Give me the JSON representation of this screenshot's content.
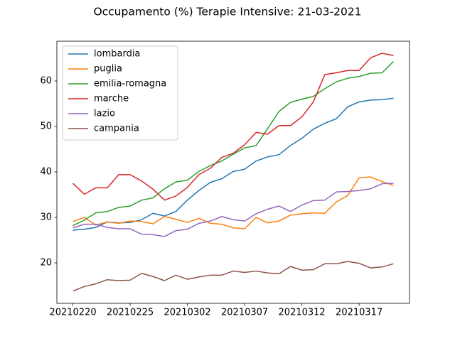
{
  "chart_data": {
    "type": "line",
    "title": "Occupamento (%) Terapie Intensive: 21-03-2021",
    "categories": [
      "20210220",
      null,
      null,
      null,
      null,
      "20210225",
      null,
      null,
      null,
      null,
      "20210302",
      null,
      null,
      null,
      null,
      "20210307",
      null,
      null,
      null,
      null,
      "20210312",
      null,
      null,
      null,
      null,
      "20210317",
      null,
      null,
      null
    ],
    "series": [
      {
        "name": "lombardia",
        "color": "#1f77b4",
        "values": [
          27.2,
          27.4,
          27.8,
          29.0,
          28.8,
          28.9,
          29.5,
          30.9,
          30.3,
          31.3,
          33.8,
          35.9,
          37.7,
          38.5,
          40.1,
          40.6,
          42.4,
          43.3,
          43.8,
          45.8,
          47.4,
          49.4,
          50.7,
          51.7,
          54.3,
          55.4,
          55.8,
          55.9,
          56.2
        ]
      },
      {
        "name": "puglia",
        "color": "#ff7f0e",
        "values": [
          29.1,
          30.0,
          28.3,
          29.0,
          28.7,
          29.2,
          29.1,
          28.6,
          30.2,
          29.6,
          28.9,
          29.8,
          28.7,
          28.5,
          27.7,
          27.5,
          30.0,
          28.8,
          29.2,
          30.5,
          30.8,
          31.0,
          30.9,
          33.4,
          34.8,
          38.7,
          38.9,
          37.9,
          37.0
        ]
      },
      {
        "name": "emilia-romagna",
        "color": "#2ca02c",
        "values": [
          28.2,
          29.4,
          31.0,
          31.3,
          32.2,
          32.5,
          33.8,
          34.3,
          36.3,
          37.8,
          38.2,
          40.1,
          41.4,
          42.4,
          43.9,
          45.3,
          45.8,
          49.5,
          53.3,
          55.3,
          56.0,
          56.6,
          58.3,
          59.8,
          60.6,
          61.0,
          61.7,
          61.8,
          64.3
        ]
      },
      {
        "name": "marche",
        "color": "#d62728",
        "values": [
          37.5,
          35.1,
          36.5,
          36.5,
          39.4,
          39.4,
          38.0,
          36.2,
          33.8,
          34.7,
          36.6,
          39.4,
          40.8,
          43.2,
          44.1,
          46.0,
          48.7,
          48.3,
          50.2,
          50.2,
          52.1,
          55.4,
          61.4,
          61.8,
          62.3,
          62.3,
          65.1,
          66.1,
          65.6
        ]
      },
      {
        "name": "lazio",
        "color": "#9467bd",
        "values": [
          27.7,
          28.5,
          28.5,
          27.8,
          27.5,
          27.5,
          26.3,
          26.2,
          25.8,
          27.1,
          27.4,
          28.7,
          29.2,
          30.2,
          29.5,
          29.2,
          30.8,
          31.8,
          32.5,
          31.3,
          32.7,
          33.7,
          33.8,
          35.6,
          35.7,
          35.9,
          36.3,
          37.4,
          37.5
        ]
      },
      {
        "name": "campania",
        "color": "#8c564b",
        "values": [
          13.8,
          14.8,
          15.4,
          16.3,
          16.1,
          16.2,
          17.7,
          17.0,
          16.1,
          17.3,
          16.4,
          16.9,
          17.3,
          17.3,
          18.2,
          17.9,
          18.2,
          17.8,
          17.6,
          19.2,
          18.4,
          18.5,
          19.8,
          19.8,
          20.3,
          19.9,
          18.9,
          19.1,
          19.8
        ]
      }
    ],
    "ylim": [
      11.1,
      68.75
    ],
    "yticks": [
      20,
      30,
      40,
      50,
      60
    ],
    "grid": false,
    "legend": "upper left"
  }
}
